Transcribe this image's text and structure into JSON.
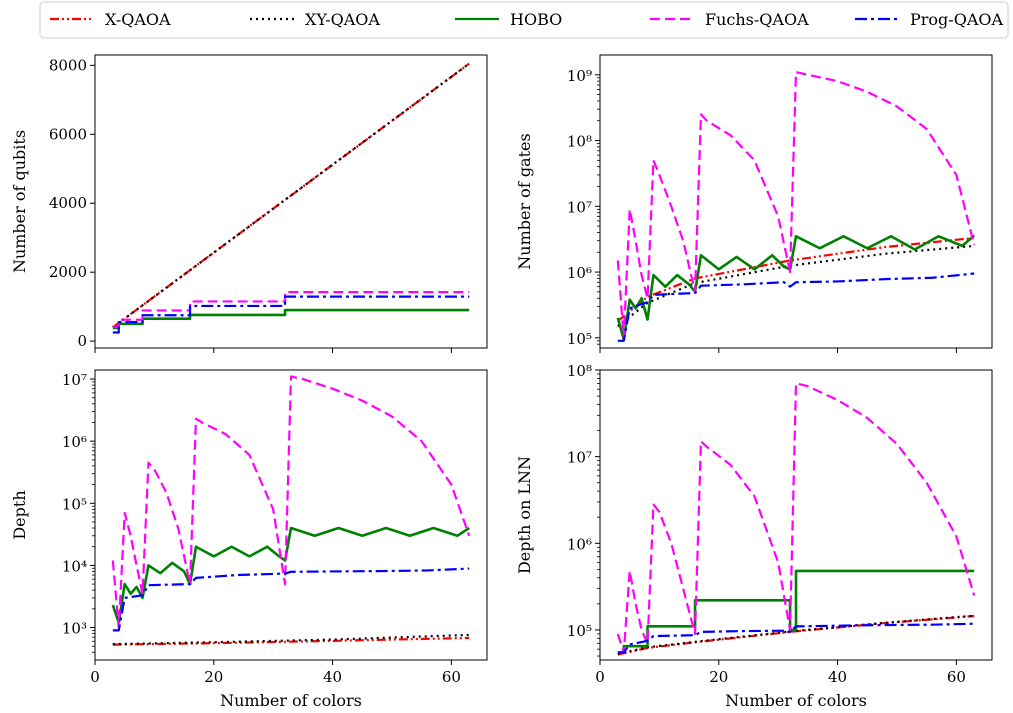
{
  "legend": {
    "placement": "top",
    "entries": [
      {
        "name": "X-QAOA",
        "color": "#ff0000",
        "style": "dashdotdot"
      },
      {
        "name": "XY-QAOA",
        "color": "#000000",
        "style": "dotted"
      },
      {
        "name": "HOBO",
        "color": "#008000",
        "style": "solid"
      },
      {
        "name": "Fuchs-QAOA",
        "color": "#ff00ff",
        "style": "dashed"
      },
      {
        "name": "Prog-QAOA",
        "color": "#0000ff",
        "style": "dashdot"
      }
    ]
  },
  "chart_data": [
    {
      "type": "line",
      "panel": "top-left",
      "xlabel": "",
      "ylabel": "Number of qubits",
      "yscale": "linear",
      "xlim": [
        0,
        66
      ],
      "ylim": [
        -200,
        8300
      ],
      "xticks": [
        0,
        20,
        40,
        60
      ],
      "xticklabels": [
        "",
        "",
        "",
        ""
      ],
      "yticks": [
        0,
        2000,
        4000,
        6000,
        8000
      ],
      "yticklabels": [
        "0",
        "2000",
        "4000",
        "6000",
        "8000"
      ],
      "series": [
        {
          "name": "X-QAOA",
          "x": [
            3,
            63
          ],
          "y": [
            400,
            8050
          ]
        },
        {
          "name": "XY-QAOA",
          "x": [
            3,
            63
          ],
          "y": [
            400,
            8050
          ]
        },
        {
          "name": "HOBO",
          "x": [
            3,
            4,
            4,
            8,
            8,
            16,
            16,
            32,
            32,
            63
          ],
          "y": [
            380,
            380,
            500,
            500,
            650,
            650,
            760,
            760,
            900,
            900
          ]
        },
        {
          "name": "Fuchs-QAOA",
          "x": [
            3,
            4,
            4,
            8,
            8,
            16,
            16,
            32,
            32,
            63
          ],
          "y": [
            420,
            420,
            620,
            620,
            890,
            890,
            1150,
            1150,
            1420,
            1420
          ]
        },
        {
          "name": "Prog-QAOA",
          "x": [
            3,
            4,
            4,
            8,
            8,
            16,
            16,
            32,
            32,
            63
          ],
          "y": [
            250,
            250,
            550,
            550,
            750,
            750,
            1020,
            1020,
            1290,
            1290
          ]
        }
      ]
    },
    {
      "type": "line",
      "panel": "top-right",
      "xlabel": "",
      "ylabel": "Number of gates",
      "yscale": "log",
      "xlim": [
        0,
        66
      ],
      "ylim": [
        70000,
        2000000000
      ],
      "xticks": [
        0,
        20,
        40,
        60
      ],
      "xticklabels": [
        "",
        "",
        "",
        ""
      ],
      "yticks": [
        100000,
        1000000,
        10000000,
        100000000,
        1000000000
      ],
      "yticklabels": [
        "10^5",
        "10^6",
        "10^7",
        "10^8",
        "10^9"
      ],
      "series": [
        {
          "name": "X-QAOA",
          "x": [
            3,
            8,
            16,
            32,
            48,
            63
          ],
          "y": [
            180000,
            420000,
            800000,
            1500000,
            2400000,
            3300000
          ]
        },
        {
          "name": "XY-QAOA",
          "x": [
            3,
            8,
            16,
            32,
            48,
            63
          ],
          "y": [
            150000,
            340000,
            680000,
            1250000,
            1900000,
            2500000
          ]
        },
        {
          "name": "HOBO",
          "x": [
            3,
            4,
            5,
            6,
            7,
            8,
            9,
            11,
            13,
            15,
            16,
            17,
            20,
            23,
            26,
            29,
            31,
            32,
            33,
            37,
            41,
            45,
            49,
            53,
            57,
            61,
            63
          ],
          "y": [
            200000,
            95000,
            380000,
            280000,
            400000,
            190000,
            900000,
            600000,
            900000,
            650000,
            500000,
            1800000,
            1100000,
            1700000,
            1100000,
            1800000,
            1200000,
            1100000,
            3500000,
            2300000,
            3500000,
            2300000,
            3500000,
            2200000,
            3500000,
            2500000,
            3600000
          ]
        },
        {
          "name": "Fuchs-QAOA",
          "x": [
            3,
            4,
            5,
            6,
            7,
            8,
            9,
            10,
            12,
            14,
            16,
            17,
            18,
            22,
            26,
            30,
            32,
            33,
            35,
            40,
            45,
            50,
            55,
            60,
            63
          ],
          "y": [
            1500000,
            100000,
            9000000,
            3000000,
            900000,
            400000,
            50000000,
            30000000,
            10000000,
            3000000,
            500000,
            250000000,
            200000000,
            120000000,
            50000000,
            7000000,
            1000000,
            1100000000,
            1000000000,
            800000000,
            550000000,
            330000000,
            150000000,
            30000000,
            2600000
          ]
        },
        {
          "name": "Prog-QAOA",
          "x": [
            3,
            4,
            5,
            8,
            9,
            16,
            17,
            24,
            31,
            32,
            33,
            40,
            48,
            56,
            63
          ],
          "y": [
            90000,
            90000,
            280000,
            350000,
            450000,
            480000,
            620000,
            650000,
            700000,
            600000,
            700000,
            720000,
            780000,
            820000,
            950000
          ]
        }
      ]
    },
    {
      "type": "line",
      "panel": "bottom-left",
      "xlabel": "Number of colors",
      "ylabel": "Depth",
      "yscale": "log",
      "xlim": [
        0,
        66
      ],
      "ylim": [
        300,
        14000000
      ],
      "xticks": [
        0,
        20,
        40,
        60
      ],
      "xticklabels": [
        "0",
        "20",
        "40",
        "60"
      ],
      "yticks": [
        1000,
        10000,
        100000,
        1000000,
        10000000
      ],
      "yticklabels": [
        "10^3",
        "10^4",
        "10^5",
        "10^6",
        "10^7"
      ],
      "series": [
        {
          "name": "X-QAOA",
          "x": [
            3,
            20,
            40,
            63
          ],
          "y": [
            530,
            560,
            610,
            680
          ]
        },
        {
          "name": "XY-QAOA",
          "x": [
            3,
            20,
            40,
            63
          ],
          "y": [
            540,
            580,
            640,
            760
          ]
        },
        {
          "name": "HOBO",
          "x": [
            3,
            4,
            5,
            6,
            7,
            8,
            9,
            11,
            13,
            15,
            16,
            17,
            20,
            23,
            26,
            29,
            31,
            32,
            33,
            37,
            41,
            45,
            49,
            53,
            57,
            61,
            63
          ],
          "y": [
            2300,
            1200,
            5000,
            3500,
            4500,
            3000,
            10000,
            7500,
            11000,
            8000,
            5000,
            20000,
            14000,
            20000,
            14000,
            20000,
            14000,
            12000,
            40000,
            30000,
            40000,
            30000,
            40000,
            30000,
            40000,
            30000,
            40000
          ]
        },
        {
          "name": "Fuchs-QAOA",
          "x": [
            3,
            4,
            5,
            6,
            7,
            8,
            9,
            10,
            12,
            14,
            16,
            17,
            18,
            22,
            26,
            30,
            32,
            33,
            35,
            40,
            45,
            50,
            55,
            60,
            63
          ],
          "y": [
            12000,
            1000,
            70000,
            30000,
            10000,
            3500,
            450000,
            350000,
            150000,
            40000,
            5000,
            2300000,
            2000000,
            1300000,
            600000,
            80000,
            5000,
            11000000,
            10000000,
            7000000,
            4500000,
            2500000,
            1000000,
            200000,
            30000
          ]
        },
        {
          "name": "Prog-QAOA",
          "x": [
            3,
            4,
            5,
            8,
            9,
            16,
            17,
            24,
            32,
            33,
            40,
            48,
            56,
            63
          ],
          "y": [
            900,
            900,
            3000,
            3300,
            4800,
            5000,
            6300,
            7000,
            7400,
            7900,
            8000,
            8100,
            8300,
            8900
          ]
        }
      ]
    },
    {
      "type": "line",
      "panel": "bottom-right",
      "xlabel": "Number of colors",
      "ylabel": "Depth on LNN",
      "yscale": "log",
      "xlim": [
        0,
        66
      ],
      "ylim": [
        45000,
        100000000
      ],
      "xticks": [
        0,
        20,
        40,
        60
      ],
      "xticklabels": [
        "0",
        "20",
        "40",
        "60"
      ],
      "yticks": [
        100000,
        1000000,
        10000000,
        100000000
      ],
      "yticklabels": [
        "10^5",
        "10^6",
        "10^7",
        "10^8"
      ],
      "series": [
        {
          "name": "X-QAOA",
          "x": [
            3,
            8,
            16,
            32,
            48,
            63
          ],
          "y": [
            52000,
            62000,
            72000,
            95000,
            120000,
            145000
          ]
        },
        {
          "name": "XY-QAOA",
          "x": [
            3,
            8,
            16,
            32,
            48,
            63
          ],
          "y": [
            53000,
            63000,
            73000,
            96000,
            121000,
            146000
          ]
        },
        {
          "name": "HOBO",
          "x": [
            3,
            4,
            4,
            8,
            8,
            16,
            16,
            32,
            32,
            33,
            33,
            63
          ],
          "y": [
            55000,
            55000,
            65000,
            65000,
            110000,
            110000,
            220000,
            220000,
            100000,
            100000,
            480000,
            480000
          ]
        },
        {
          "name": "Fuchs-QAOA",
          "x": [
            3,
            4,
            5,
            6,
            7,
            8,
            9,
            10,
            12,
            14,
            16,
            17,
            18,
            22,
            26,
            30,
            32,
            33,
            35,
            40,
            45,
            50,
            55,
            60,
            63
          ],
          "y": [
            90000,
            55000,
            480000,
            200000,
            100000,
            70000,
            2800000,
            2300000,
            1000000,
            300000,
            90000,
            15000000,
            13000000,
            8000000,
            3500000,
            600000,
            100000,
            70000000,
            65000000,
            45000000,
            28000000,
            14000000,
            5000000,
            1200000,
            250000
          ]
        },
        {
          "name": "Prog-QAOA",
          "x": [
            3,
            4,
            5,
            8,
            9,
            16,
            17,
            24,
            31,
            32,
            33,
            40,
            48,
            56,
            63
          ],
          "y": [
            55000,
            55000,
            68000,
            75000,
            85000,
            87000,
            95000,
            97000,
            98000,
            95000,
            110000,
            112000,
            114000,
            115000,
            118000
          ]
        }
      ]
    }
  ]
}
